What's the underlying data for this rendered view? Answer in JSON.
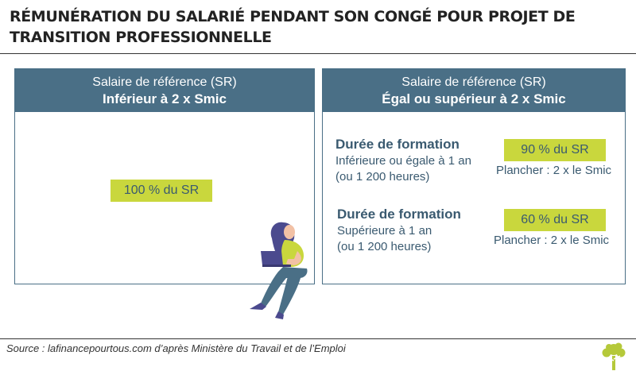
{
  "title": "RÉMUNÉRATION DU SALARIÉ PENDANT SON CONGÉ POUR PROJET DE TRANSITION PROFESSIONNELLE",
  "left_box": {
    "header_sub": "Salaire de référence (SR)",
    "header_main": "Inférieur à 2 x Smic",
    "pill": "100 % du SR"
  },
  "right_box": {
    "header_sub": "Salaire de référence (SR)",
    "header_main": "Égal ou supérieur à 2 x Smic",
    "blocks": [
      {
        "title": "Durée de formation",
        "line1": "Inférieure ou égale à 1 an",
        "line2": "(ou 1 200 heures)",
        "pill": "90 % du SR",
        "floor": "Plancher : 2 x le Smic"
      },
      {
        "title": "Durée de formation",
        "line1": "Supérieure à 1 an",
        "line2": "(ou 1 200 heures)",
        "pill": "60 % du SR",
        "floor": "Plancher : 2 x le Smic"
      }
    ]
  },
  "source": "Source : lafinancepourtous.com d’après Ministère du Travail et de l’Emploi",
  "colors": {
    "header": "#4a6f86",
    "accent": "#c9d73d",
    "text": "#3a5a70"
  },
  "icons": {
    "illustration": "woman-with-laptop-illustration",
    "logo": "tree-icon"
  }
}
